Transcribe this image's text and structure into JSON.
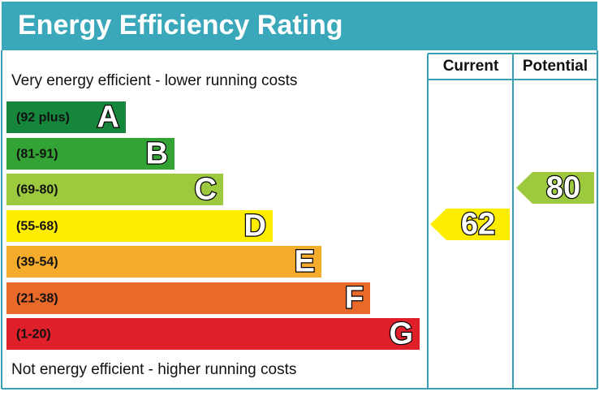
{
  "header": {
    "title": "Energy Efficiency Rating"
  },
  "columns": [
    "Current",
    "Potential"
  ],
  "top_note": "Very energy efficient - lower running costs",
  "bottom_note": "Not energy efficient - higher running costs",
  "bands": [
    {
      "range": "(92 plus)",
      "letter": "A"
    },
    {
      "range": "(81-91)",
      "letter": "B"
    },
    {
      "range": "(69-80)",
      "letter": "C"
    },
    {
      "range": "(55-68)",
      "letter": "D"
    },
    {
      "range": "(39-54)",
      "letter": "E"
    },
    {
      "range": "(21-38)",
      "letter": "F"
    },
    {
      "range": "(1-20)",
      "letter": "G"
    }
  ],
  "current": {
    "rating": "62"
  },
  "potential": {
    "rating": "80"
  }
}
